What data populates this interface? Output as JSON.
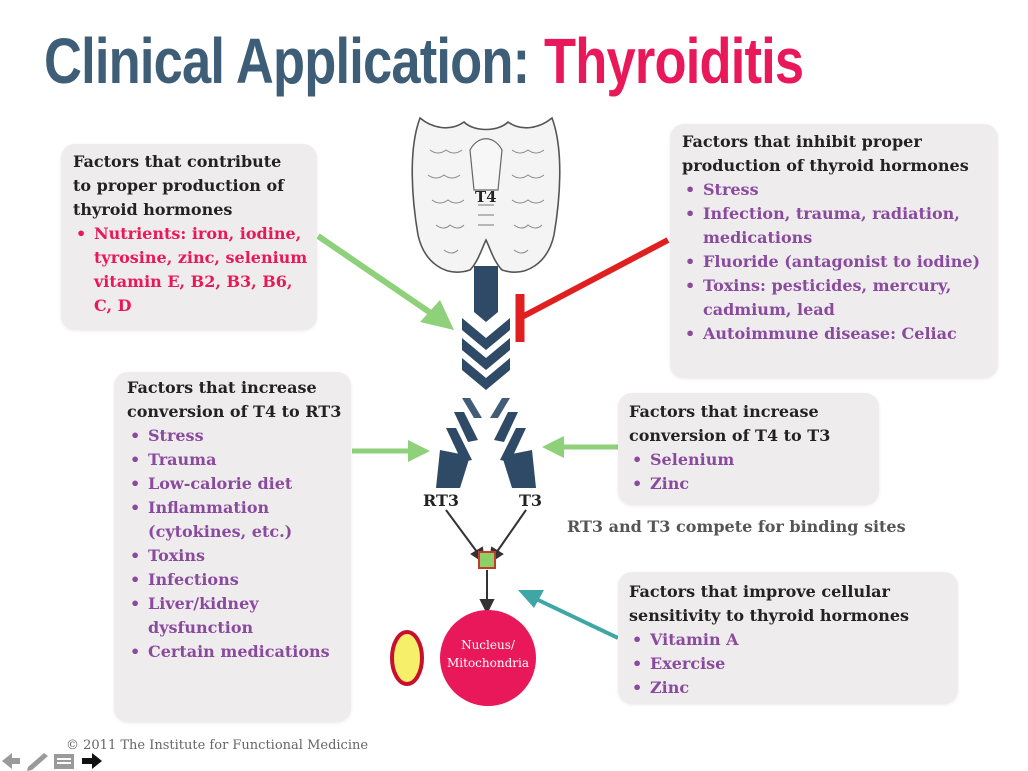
{
  "title": {
    "part1": "Clinical Application:",
    "part2": "Thyroiditis"
  },
  "gland_label": "T4",
  "contribute_box": {
    "heading": "Factors that contribute to proper production of thyroid hormones",
    "items": [
      "Nutrients:  iron, iodine, tyrosine, zinc, selenium vitamin E, B2, B3, B6, C, D"
    ]
  },
  "inhibit_box": {
    "heading": "Factors that inhibit proper production of thyroid hormones",
    "items": [
      "Stress",
      "Infection, trauma, radiation, medications",
      "Fluoride (antagonist to iodine)",
      "Toxins: pesticides, mercury, cadmium, lead",
      "Autoimmune disease: Celiac"
    ]
  },
  "rt3_box": {
    "heading": "Factors that increase conversion of T4 to RT3",
    "items": [
      "Stress",
      "Trauma",
      "Low-calorie diet",
      "Inflammation (cytokines, etc.)",
      "Toxins",
      "Infections",
      "Liver/kidney dysfunction",
      "Certain medications"
    ]
  },
  "t3_box": {
    "heading": "Factors that increase conversion of T4 to T3",
    "items": [
      "Selenium",
      "Zinc"
    ]
  },
  "sensitivity_box": {
    "heading": "Factors that improve cellular sensitivity to thyroid hormones",
    "items": [
      "Vitamin A",
      "Exercise",
      "Zinc"
    ]
  },
  "rt3_label": "RT3",
  "t3_label": "T3",
  "compete_text": "RT3 and T3 compete for binding sites",
  "nucleus_line1": "Nucleus/",
  "nucleus_line2": "Mitochondria",
  "copyright": "© 2011 The Institute for Functional Medicine",
  "colors": {
    "title_blue": "#3e5e78",
    "title_pink": "#e8185a",
    "purple_text": "#8a4a9e",
    "chevron_navy": "#2e4a66",
    "green_arrow": "#8fd07a",
    "red_inhibit": "#e02020",
    "teal_arrow": "#3fa6a6",
    "nucleus": "#e8185a",
    "yellow_oval": "#f5ef6a"
  }
}
